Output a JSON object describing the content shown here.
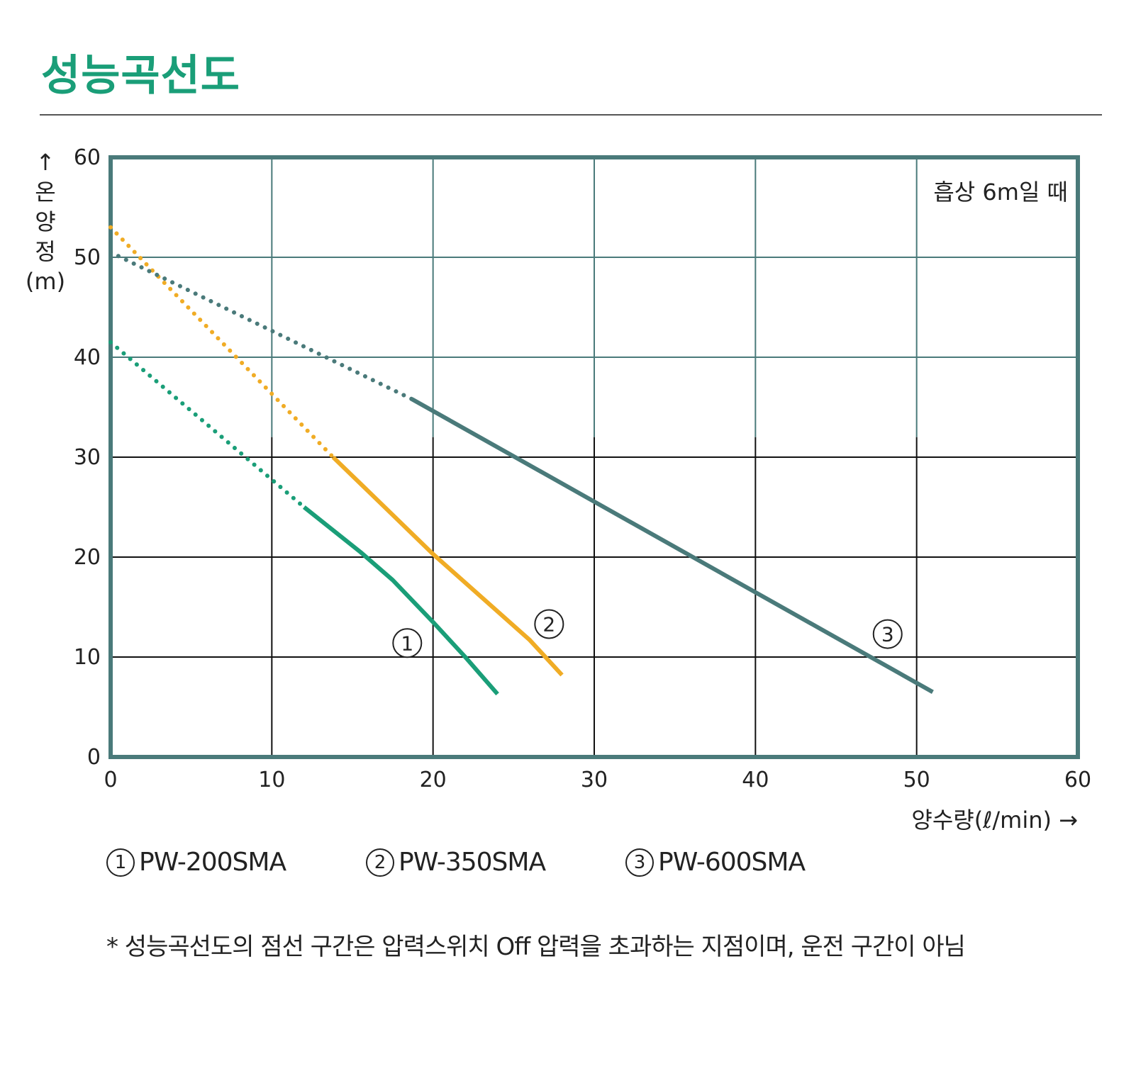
{
  "page": {
    "title": "성능곡선도",
    "footnote": "* 성능곡선도의 점선 구간은 압력스위치 Off 압력을 초과하는 지점이며, 운전 구간이 아님"
  },
  "chart_data": {
    "type": "line",
    "title": "",
    "annotation": "흡상 6m일 때",
    "xlabel": "양수량(ℓ/min) →",
    "ylabel_chars": [
      "↑",
      "온",
      "양",
      "정",
      "(m)"
    ],
    "xlim": [
      0,
      60
    ],
    "ylim": [
      0,
      60
    ],
    "xticks": [
      0,
      10,
      20,
      30,
      40,
      50,
      60
    ],
    "yticks": [
      0,
      10,
      20,
      30,
      40,
      50,
      60
    ],
    "grid": true,
    "series": [
      {
        "id": "1",
        "name": "PW-200SMA",
        "color": "#1a9e78",
        "dotted": [
          [
            0,
            41.5
          ],
          [
            12,
            25
          ]
        ],
        "solid": [
          [
            12,
            25
          ],
          [
            15.5,
            20.5
          ],
          [
            17.5,
            17.7
          ],
          [
            20,
            13.5
          ],
          [
            22,
            10
          ],
          [
            24,
            6.3
          ]
        ],
        "marker_label": "1",
        "marker_at": [
          18.4,
          11.4
        ]
      },
      {
        "id": "2",
        "name": "PW-350SMA",
        "color": "#f0ac25",
        "dotted": [
          [
            0,
            53
          ],
          [
            13.8,
            30
          ]
        ],
        "solid": [
          [
            13.8,
            30
          ],
          [
            17,
            25
          ],
          [
            20,
            20.3
          ],
          [
            23,
            16
          ],
          [
            26,
            11.7
          ],
          [
            28,
            8.2
          ]
        ],
        "marker_label": "2",
        "marker_at": [
          27.2,
          13.3
        ]
      },
      {
        "id": "3",
        "name": "PW-600SMA",
        "color": "#4a7a7a",
        "dotted": [
          [
            0,
            50.5
          ],
          [
            18.7,
            35.8
          ]
        ],
        "solid": [
          [
            18.7,
            35.8
          ],
          [
            51,
            6.5
          ]
        ],
        "marker_label": "3",
        "marker_at": [
          48.2,
          12.3
        ]
      }
    ],
    "legend_placement": "bottom"
  }
}
